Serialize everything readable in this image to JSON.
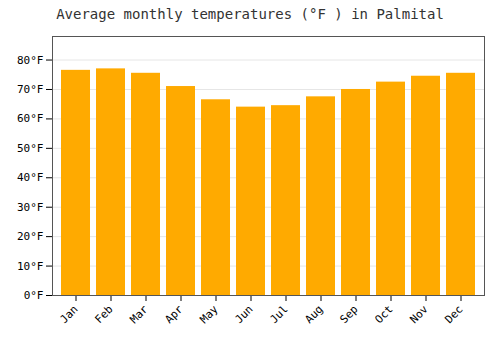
{
  "chart_data": {
    "type": "bar",
    "title": "Average monthly temperatures (°F ) in Palmital",
    "categories": [
      "Jan",
      "Feb",
      "Mar",
      "Apr",
      "May",
      "Jun",
      "Jul",
      "Aug",
      "Sep",
      "Oct",
      "Nov",
      "Dec"
    ],
    "values": [
      76.5,
      77.0,
      75.5,
      71.0,
      66.5,
      64.0,
      64.5,
      67.5,
      70.0,
      72.5,
      74.5,
      75.5
    ],
    "color": "#FFAA00",
    "ylim": [
      0,
      88
    ],
    "yticks": [
      {
        "value": 0,
        "label": "0°F"
      },
      {
        "value": 10,
        "label": "10°F"
      },
      {
        "value": 20,
        "label": "20°F"
      },
      {
        "value": 30,
        "label": "30°F"
      },
      {
        "value": 40,
        "label": "40°F"
      },
      {
        "value": 50,
        "label": "50°F"
      },
      {
        "value": 60,
        "label": "60°F"
      },
      {
        "value": 70,
        "label": "70°F"
      },
      {
        "value": 80,
        "label": "80°F"
      }
    ],
    "grid": true
  }
}
